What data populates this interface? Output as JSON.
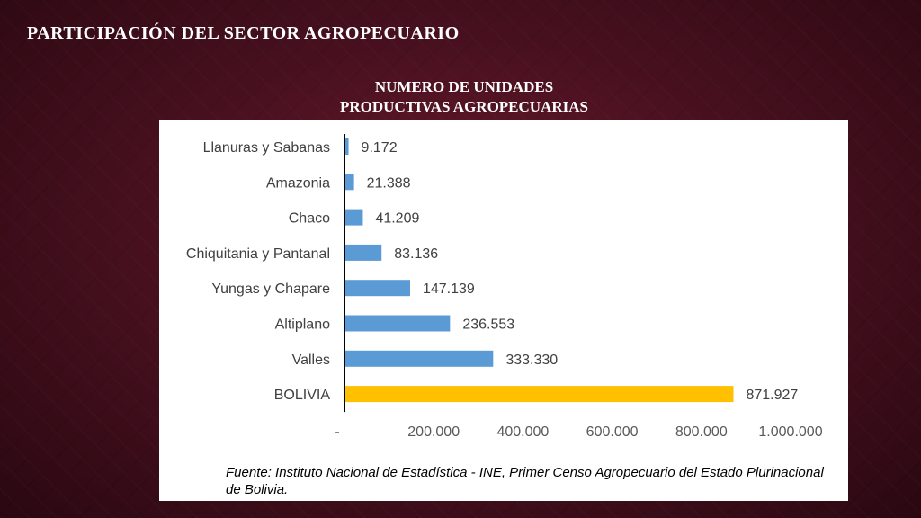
{
  "slide": {
    "title": "PARTICIPACIÓN DEL SECTOR AGROPECUARIO"
  },
  "chart_title_lines": [
    "NUMERO DE UNIDADES",
    "PRODUCTIVAS AGROPECUARIAS"
  ],
  "source_note": "Fuente: Instituto Nacional de Estadística - INE, Primer Censo Agropecuario del Estado Plurinacional de Bolivia.",
  "colors": {
    "region_bar": "#5b9bd5",
    "total_bar": "#ffc000"
  },
  "chart_data": {
    "type": "bar",
    "orientation": "horizontal",
    "title": "NUMERO DE UNIDADES PRODUCTIVAS AGROPECUARIAS",
    "categories": [
      "Llanuras y Sabanas",
      "Amazonia",
      "Chaco",
      "Chiquitania y Pantanal",
      "Yungas y Chapare",
      "Altiplano",
      "Valles",
      "BOLIVIA"
    ],
    "values": [
      9172,
      21388,
      41209,
      83136,
      147139,
      236553,
      333330,
      871927
    ],
    "data_labels": [
      "9.172",
      "21.388",
      "41.209",
      "83.136",
      "147.139",
      "236.553",
      "333.330",
      "871.927"
    ],
    "xlim": [
      0,
      1000000
    ],
    "x_ticks": [
      0,
      200000,
      400000,
      600000,
      800000,
      1000000
    ],
    "x_tick_labels": [
      "-",
      "200.000",
      "400.000",
      "600.000",
      "800.000",
      "1.000.000"
    ],
    "grid": false,
    "legend": "none",
    "xlabel": "",
    "ylabel": ""
  }
}
